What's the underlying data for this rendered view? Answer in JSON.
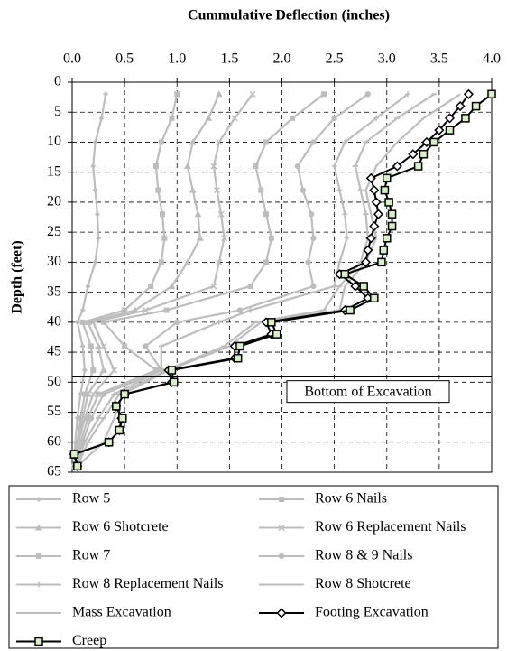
{
  "chart_data": {
    "type": "line",
    "title": "Cummulative Deflection (inches)",
    "y_label": "Depth (feet)",
    "xlim": [
      0,
      4
    ],
    "xticks": [
      {
        "value": 0,
        "label": "0.0"
      },
      {
        "value": 0.5,
        "label": "0.5"
      },
      {
        "value": 1,
        "label": "1.0"
      },
      {
        "value": 1.5,
        "label": "1.5"
      },
      {
        "value": 2,
        "label": "2.0"
      },
      {
        "value": 2.5,
        "label": "2.5"
      },
      {
        "value": 3,
        "label": "3.0"
      },
      {
        "value": 3.5,
        "label": "3.5"
      },
      {
        "value": 4,
        "label": "4.0"
      }
    ],
    "ylim": [
      0,
      65
    ],
    "yticks": [
      0,
      5,
      10,
      15,
      20,
      25,
      30,
      35,
      40,
      45,
      50,
      55,
      60,
      65
    ],
    "y_reversed": true,
    "x_axis_position": "top",
    "grid": true,
    "annotation": {
      "text": "Bottom of Excavation",
      "depth": 49
    },
    "series": [
      {
        "name": "Row 5",
        "color": "#bdbdbd",
        "marker": "diamond",
        "depths": [
          2,
          6,
          10,
          14,
          18,
          22,
          26,
          30,
          34,
          38,
          40,
          44,
          48,
          52,
          56,
          60,
          64
        ],
        "values": [
          0.32,
          0.28,
          0.22,
          0.2,
          0.22,
          0.24,
          0.25,
          0.22,
          0.15,
          0.1,
          0.05,
          0.1,
          0.12,
          0.08,
          0.05,
          0.03,
          0.02
        ]
      },
      {
        "name": "Row 6 Nails",
        "color": "#bdbdbd",
        "marker": "square",
        "depths": [
          2,
          6,
          10,
          14,
          18,
          22,
          26,
          30,
          34,
          38,
          40,
          44,
          48,
          52,
          56,
          60,
          64
        ],
        "values": [
          1.0,
          0.95,
          0.85,
          0.8,
          0.82,
          0.86,
          0.88,
          0.85,
          0.75,
          0.5,
          0.1,
          0.18,
          0.2,
          0.12,
          0.08,
          0.05,
          0.02
        ]
      },
      {
        "name": "Row 6 Shotcrete",
        "color": "#bdbdbd",
        "marker": "triangle",
        "depths": [
          2,
          6,
          10,
          14,
          18,
          22,
          26,
          30,
          34,
          38,
          40,
          44,
          48,
          52,
          56,
          60,
          64
        ],
        "values": [
          1.4,
          1.3,
          1.15,
          1.1,
          1.15,
          1.2,
          1.22,
          1.1,
          0.95,
          0.6,
          0.15,
          0.25,
          0.3,
          0.15,
          0.1,
          0.05,
          0.02
        ]
      },
      {
        "name": "Row 6 Replacement Nails",
        "color": "#bdbdbd",
        "marker": "x",
        "depths": [
          2,
          6,
          10,
          14,
          18,
          22,
          26,
          30,
          34,
          38,
          40,
          44,
          48,
          52,
          56,
          60,
          64
        ],
        "values": [
          1.72,
          1.55,
          1.4,
          1.35,
          1.38,
          1.42,
          1.45,
          1.4,
          1.35,
          0.7,
          0.2,
          0.3,
          0.4,
          0.2,
          0.12,
          0.06,
          0.03
        ]
      },
      {
        "name": "Row 7",
        "color": "#bdbdbd",
        "marker": "square",
        "depths": [
          2,
          6,
          10,
          14,
          18,
          22,
          26,
          30,
          34,
          38,
          40,
          44,
          48,
          52,
          56,
          60,
          64
        ],
        "values": [
          2.4,
          2.1,
          1.85,
          1.75,
          1.8,
          1.85,
          1.9,
          1.85,
          1.7,
          0.9,
          0.3,
          0.5,
          0.8,
          0.25,
          0.15,
          0.08,
          0.03
        ]
      },
      {
        "name": "Row 8 & 9 Nails",
        "color": "#bdbdbd",
        "marker": "circle",
        "depths": [
          2,
          6,
          10,
          14,
          18,
          22,
          26,
          30,
          34,
          38,
          40,
          44,
          48,
          52,
          56,
          60,
          64
        ],
        "values": [
          2.82,
          2.5,
          2.3,
          2.15,
          2.2,
          2.28,
          2.3,
          2.25,
          2.3,
          1.6,
          1.0,
          0.7,
          0.85,
          0.3,
          0.18,
          0.1,
          0.03
        ]
      },
      {
        "name": "Row 8 Replacement Nails",
        "color": "#bdbdbd",
        "marker": "plus",
        "depths": [
          2,
          6,
          10,
          14,
          18,
          22,
          26,
          30,
          34,
          38,
          40,
          44,
          48,
          52,
          56,
          60,
          64
        ],
        "values": [
          3.2,
          2.9,
          2.6,
          2.5,
          2.55,
          2.6,
          2.62,
          2.55,
          2.5,
          1.7,
          1.4,
          0.85,
          0.85,
          0.4,
          0.25,
          0.12,
          0.04
        ]
      },
      {
        "name": "Row 8 Shotcrete",
        "color": "#bdbdbd",
        "marker": "dash",
        "depths": [
          2,
          6,
          10,
          14,
          18,
          22,
          26,
          30,
          34,
          38,
          40,
          44,
          48,
          52,
          56,
          60,
          64
        ],
        "values": [
          3.45,
          3.1,
          2.8,
          2.7,
          2.75,
          2.8,
          2.82,
          2.75,
          2.55,
          2.4,
          1.75,
          1.45,
          0.9,
          0.45,
          0.3,
          0.15,
          0.05
        ]
      },
      {
        "name": "Mass Excavation",
        "color": "#bdbdbd",
        "marker": "none",
        "depths": [
          2,
          6,
          10,
          14,
          18,
          22,
          26,
          30,
          34,
          38,
          40,
          44,
          48,
          52,
          56,
          60,
          64
        ],
        "values": [
          3.7,
          3.35,
          3.1,
          2.9,
          2.8,
          2.85,
          2.9,
          2.8,
          2.6,
          2.55,
          1.8,
          1.5,
          0.92,
          0.48,
          0.4,
          0.3,
          0.05
        ]
      },
      {
        "name": "Footing Excavation",
        "color": "#000000",
        "marker": "diamond-open",
        "depths": [
          2,
          4,
          6,
          8,
          10,
          12,
          14,
          16,
          18,
          20,
          22,
          24,
          26,
          28,
          30,
          32,
          34,
          36,
          38,
          40,
          42,
          44,
          46,
          48,
          50,
          52,
          54,
          56,
          58,
          60,
          62,
          64
        ],
        "values": [
          3.78,
          3.7,
          3.6,
          3.5,
          3.38,
          3.25,
          3.1,
          2.85,
          2.88,
          2.9,
          2.92,
          2.88,
          2.85,
          2.82,
          2.8,
          2.55,
          2.7,
          2.82,
          2.6,
          1.85,
          1.9,
          1.55,
          1.55,
          0.92,
          0.95,
          0.5,
          0.42,
          0.47,
          0.45,
          0.35,
          0.02,
          0.05
        ]
      },
      {
        "name": "Creep",
        "color": "#000000",
        "marker": "square-green",
        "depths": [
          2,
          4,
          6,
          8,
          10,
          12,
          14,
          16,
          18,
          20,
          22,
          24,
          26,
          28,
          30,
          32,
          34,
          36,
          38,
          40,
          42,
          44,
          46,
          48,
          50,
          52,
          54,
          56,
          58,
          60,
          62,
          64
        ],
        "values": [
          4.0,
          3.85,
          3.75,
          3.6,
          3.45,
          3.35,
          3.3,
          3.0,
          2.98,
          3.02,
          3.05,
          3.05,
          3.0,
          2.97,
          2.95,
          2.6,
          2.78,
          2.88,
          2.65,
          1.9,
          1.95,
          1.6,
          1.58,
          0.95,
          0.97,
          0.5,
          0.42,
          0.48,
          0.45,
          0.35,
          0.02,
          0.05
        ]
      }
    ]
  }
}
